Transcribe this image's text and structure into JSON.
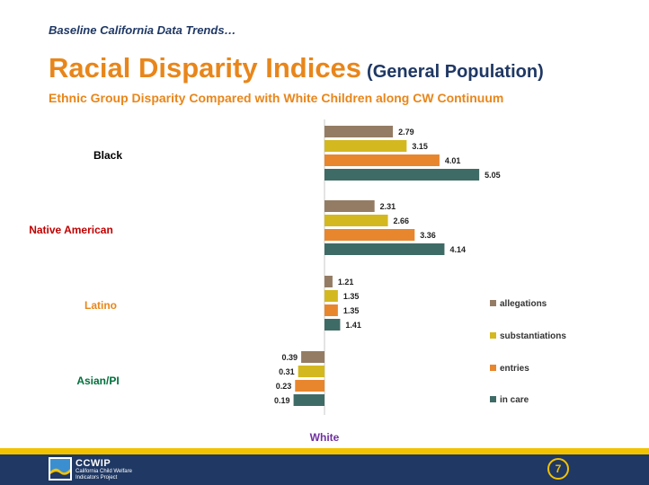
{
  "header": {
    "kicker": "Baseline California Data Trends…",
    "title": "Racial Disparity Indices",
    "title_suffix": "(General Population)",
    "subtitle": "Ethnic Group Disparity Compared with White Children along CW Continuum"
  },
  "chart_data": {
    "type": "bar",
    "orientation": "horizontal",
    "baseline_value": 1,
    "baseline_label": "White",
    "categories": [
      "Black",
      "Native American",
      "Latino",
      "Asian/PI"
    ],
    "category_colors": [
      "#000000",
      "#c00000",
      "#e8861b",
      "#00703c"
    ],
    "series": [
      {
        "name": "allegations",
        "color": "#947c64",
        "values": [
          2.79,
          2.31,
          1.21,
          0.39
        ]
      },
      {
        "name": "substantiations",
        "color": "#d4b820",
        "values": [
          3.15,
          2.66,
          1.35,
          0.31
        ]
      },
      {
        "name": "entries",
        "color": "#e8862e",
        "values": [
          4.01,
          3.36,
          1.35,
          0.23
        ]
      },
      {
        "name": "in care",
        "color": "#3f6b66",
        "values": [
          5.05,
          4.14,
          1.41,
          0.19
        ]
      }
    ],
    "data_labels": [
      [
        "2.79",
        "3.15",
        "4.01",
        "5.05"
      ],
      [
        "2.31",
        "2.66",
        "3.36",
        "4.14"
      ],
      [
        "1.21",
        "1.35",
        "1.35",
        "1.41"
      ],
      [
        "0.39",
        "0.31",
        "0.23",
        "0.19"
      ]
    ],
    "legend_position": "right",
    "baseline_label_color": "#7030a0"
  },
  "footer": {
    "logo_name": "CCWIP",
    "logo_desc_1": "California Child Welfare",
    "logo_desc_2": "Indicators Project",
    "page_number": "7"
  }
}
